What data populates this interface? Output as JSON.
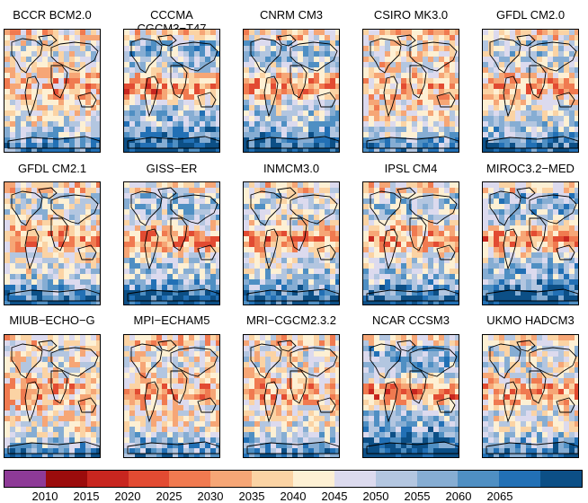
{
  "panels": [
    {
      "title": "BCCR BCM2.0",
      "warm_level": 0.35
    },
    {
      "title": "CCCMA CGCM3−T47",
      "warm_level": 0.85
    },
    {
      "title": "CNRM CM3",
      "warm_level": 0.7
    },
    {
      "title": "CSIRO MK3.0",
      "warm_level": 0.25
    },
    {
      "title": "GFDL CM2.0",
      "warm_level": 0.55
    },
    {
      "title": "GFDL CM2.1",
      "warm_level": 0.5
    },
    {
      "title": "GISS−ER",
      "warm_level": 0.75
    },
    {
      "title": "INMCM3.0",
      "warm_level": 0.6
    },
    {
      "title": "IPSL CM4",
      "warm_level": 0.65
    },
    {
      "title": "MIROC3.2−MED",
      "warm_level": 0.85
    },
    {
      "title": "MIUB−ECHO−G",
      "warm_level": 0.3
    },
    {
      "title": "MPI−ECHAM5",
      "warm_level": 0.3
    },
    {
      "title": "MRI−CGCM2.3.2",
      "warm_level": 0.35
    },
    {
      "title": "NCAR CCSM3",
      "warm_level": 0.95
    },
    {
      "title": "UKMO HADCM3",
      "warm_level": 0.45
    }
  ],
  "colorbar": {
    "colors": [
      "#8e3a97",
      "#9b0c0c",
      "#c8261f",
      "#e24b32",
      "#f07a50",
      "#f6a676",
      "#fbd3a4",
      "#fdf0d4",
      "#dcdaee",
      "#b3c6e0",
      "#86add3",
      "#4f8fc3",
      "#2270b5",
      "#0c4f86"
    ],
    "ticks": [
      "2010",
      "2015",
      "2020",
      "2025",
      "2030",
      "2035",
      "2040",
      "2045",
      "2050",
      "2055",
      "2060",
      "2065"
    ]
  },
  "land_outline_color": "#000000"
}
